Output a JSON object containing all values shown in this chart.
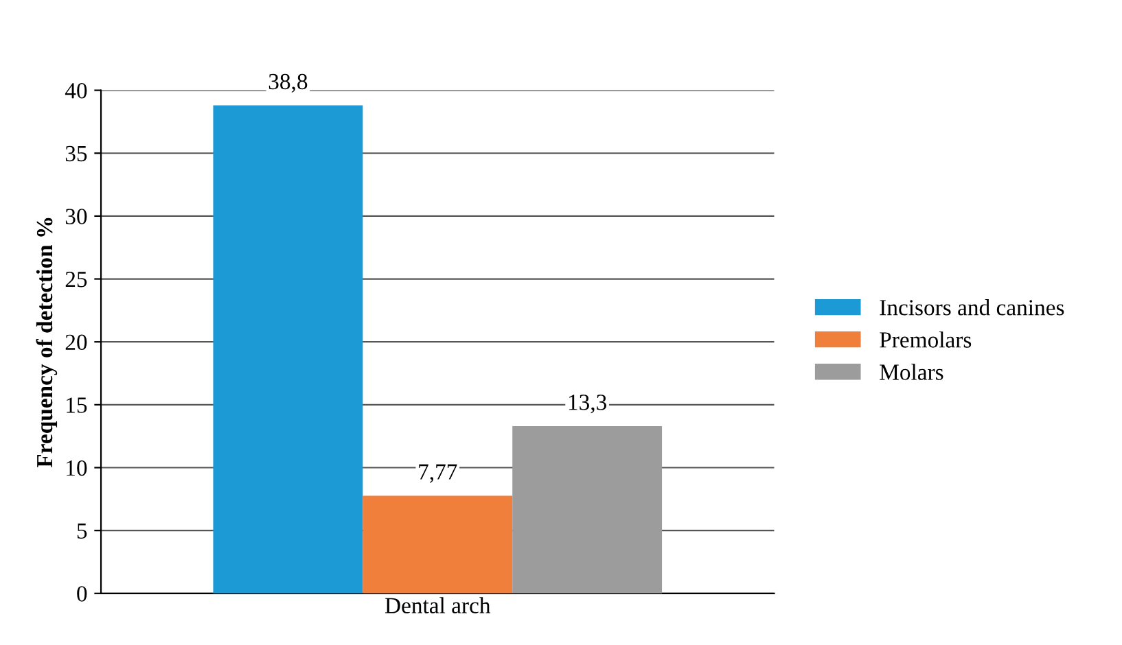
{
  "chart_data": {
    "type": "bar",
    "xlabel": "Dental arch",
    "ylabel": "Frequency of detection %",
    "categories": [
      null
    ],
    "series": [
      {
        "name": "Incisors and canines",
        "color": "#1b9ad6",
        "values": [
          38.8
        ],
        "value_labels": [
          "38,8"
        ]
      },
      {
        "name": "Premolars",
        "color": "#f07f3c",
        "values": [
          7.77
        ],
        "value_labels": [
          "7,77"
        ]
      },
      {
        "name": "Molars",
        "color": "#9c9c9c",
        "values": [
          13.3
        ],
        "value_labels": [
          "13,3"
        ]
      }
    ],
    "ylim": [
      0,
      40
    ],
    "yticks": [
      0,
      5,
      10,
      15,
      20,
      25,
      30,
      35,
      40
    ],
    "grid": "y",
    "legend": "right"
  }
}
